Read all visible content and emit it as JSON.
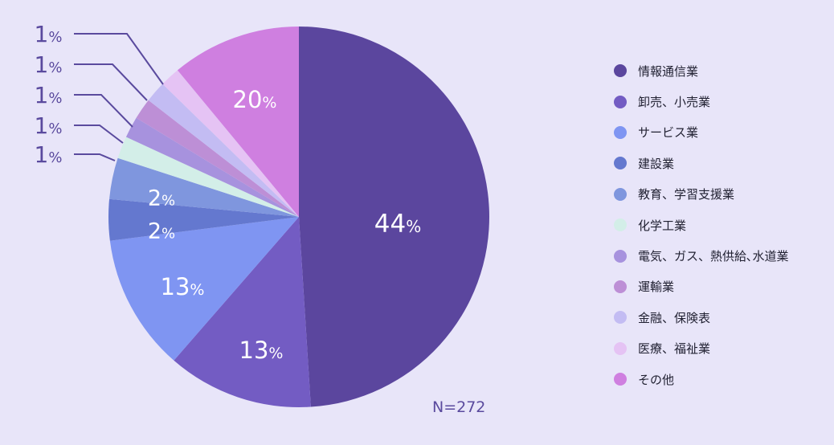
{
  "chart_data": {
    "type": "pie",
    "note": "N=272",
    "legend_position": "right",
    "slices": [
      {
        "label": "情報通信業",
        "value": 44,
        "display": "44%",
        "color": "#5b469e"
      },
      {
        "label": "卸売、小売業",
        "value": 13,
        "display": "13%",
        "color": "#735cc3"
      },
      {
        "label": "サービス業",
        "value": 13,
        "display": "13%",
        "color": "#7f95f2"
      },
      {
        "label": "建設業",
        "value": 2,
        "display": "2%",
        "color": "#6478cf"
      },
      {
        "label": "教育、学習支援業",
        "value": 2,
        "display": "2%",
        "color": "#7f96de"
      },
      {
        "label": "化学工業",
        "value": 1,
        "display": "1%",
        "color": "#d3eee8"
      },
      {
        "label": "電気、ガス、熱供給､水道業",
        "value": 1,
        "display": "1%",
        "color": "#a792de"
      },
      {
        "label": "運輸業",
        "value": 1,
        "display": "1%",
        "color": "#bd8fd6"
      },
      {
        "label": "金融、保険表",
        "value": 1,
        "display": "1%",
        "color": "#c3bcf3"
      },
      {
        "label": "医療、福祉業",
        "value": 1,
        "display": "1%",
        "color": "#e5c3f4"
      },
      {
        "label": "その他",
        "value": 20,
        "display": "20%",
        "color": "#cf7fe0"
      }
    ]
  }
}
